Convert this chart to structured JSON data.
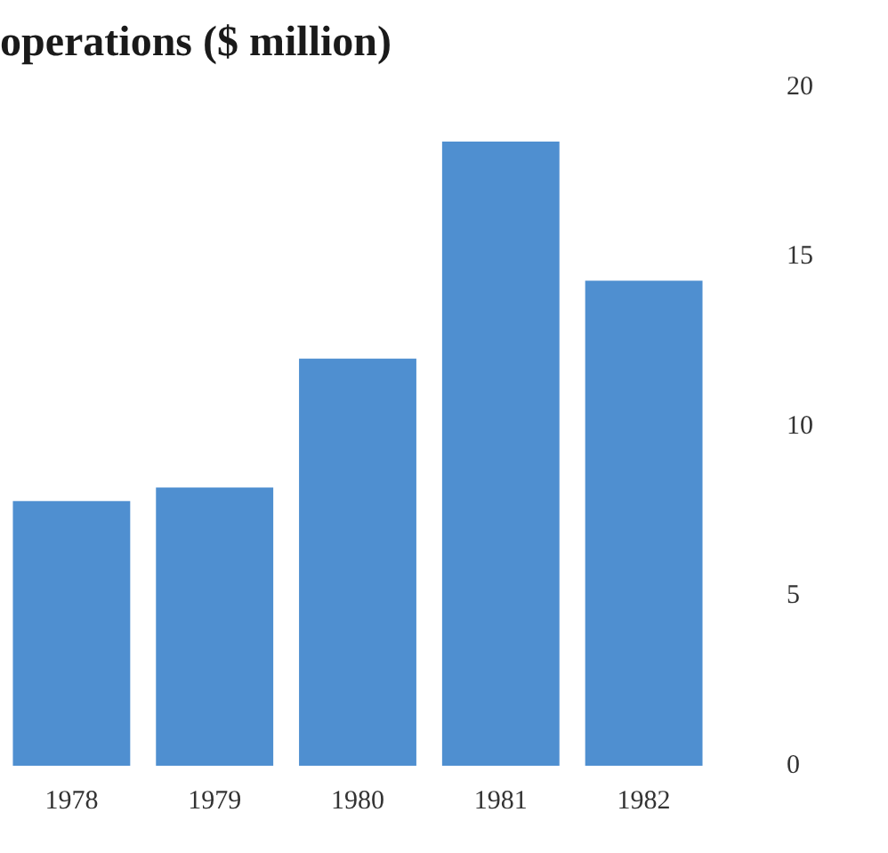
{
  "chart_data": {
    "type": "bar",
    "title": "operations ($ million)",
    "categories": [
      "1978",
      "1979",
      "1980",
      "1981",
      "1982"
    ],
    "values": [
      7.8,
      8.2,
      12,
      18.4,
      14.3
    ],
    "color": "#4f8fd0",
    "ylim": [
      0,
      20
    ],
    "yticks": [
      0,
      5,
      10,
      15,
      20
    ],
    "grid": false,
    "legend": false
  }
}
